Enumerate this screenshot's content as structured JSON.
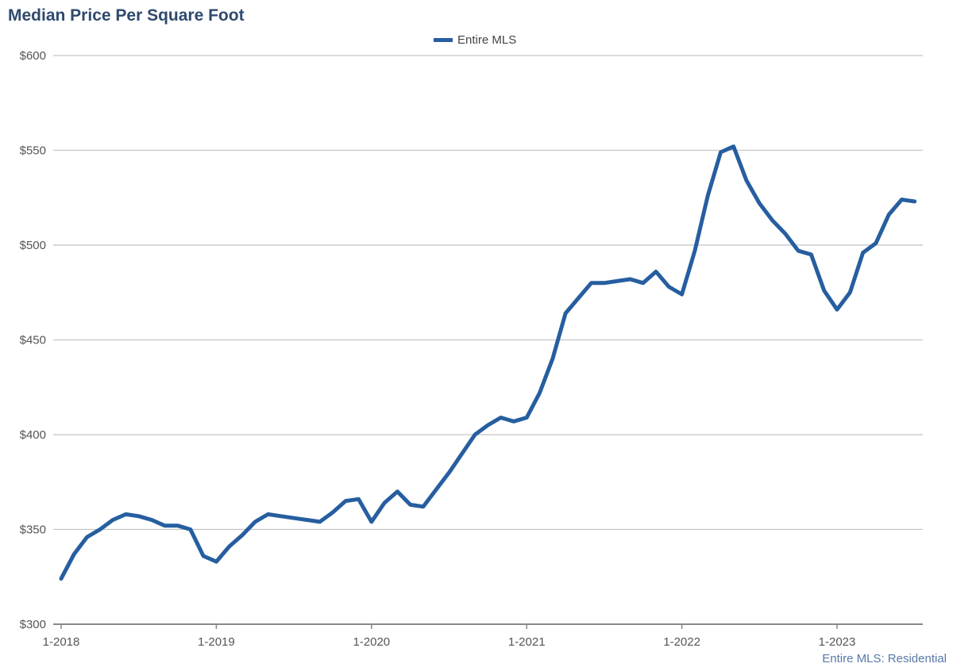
{
  "chart_data": {
    "type": "line",
    "title": "Median Price Per Square Foot",
    "xlabel": "",
    "ylabel": "",
    "ylim": [
      300,
      600
    ],
    "yticks": [
      300,
      350,
      400,
      450,
      500,
      550,
      600
    ],
    "ytick_labels": [
      "$300",
      "$350",
      "$400",
      "$450",
      "$500",
      "$550",
      "$600"
    ],
    "xtick_labels": [
      "1-2018",
      "1-2019",
      "1-2020",
      "1-2021",
      "1-2022",
      "1-2023"
    ],
    "x_start": "1-2018",
    "x_end": "7-2023",
    "grid": true,
    "legend_position": "top-center",
    "series": [
      {
        "name": "Entire MLS",
        "color": "#265ea0",
        "values": [
          324,
          337,
          346,
          350,
          355,
          358,
          357,
          355,
          352,
          352,
          350,
          336,
          333,
          341,
          347,
          354,
          358,
          357,
          356,
          355,
          354,
          359,
          365,
          366,
          354,
          364,
          370,
          363,
          362,
          371,
          380,
          390,
          400,
          405,
          409,
          407,
          409,
          422,
          440,
          464,
          472,
          480,
          480,
          481,
          482,
          480,
          486,
          478,
          474,
          497,
          526,
          549,
          552,
          534,
          522,
          513,
          506,
          497,
          495,
          476,
          466,
          475,
          496,
          501,
          516,
          524,
          523
        ]
      }
    ],
    "source_note": "Entire MLS: Residential"
  }
}
